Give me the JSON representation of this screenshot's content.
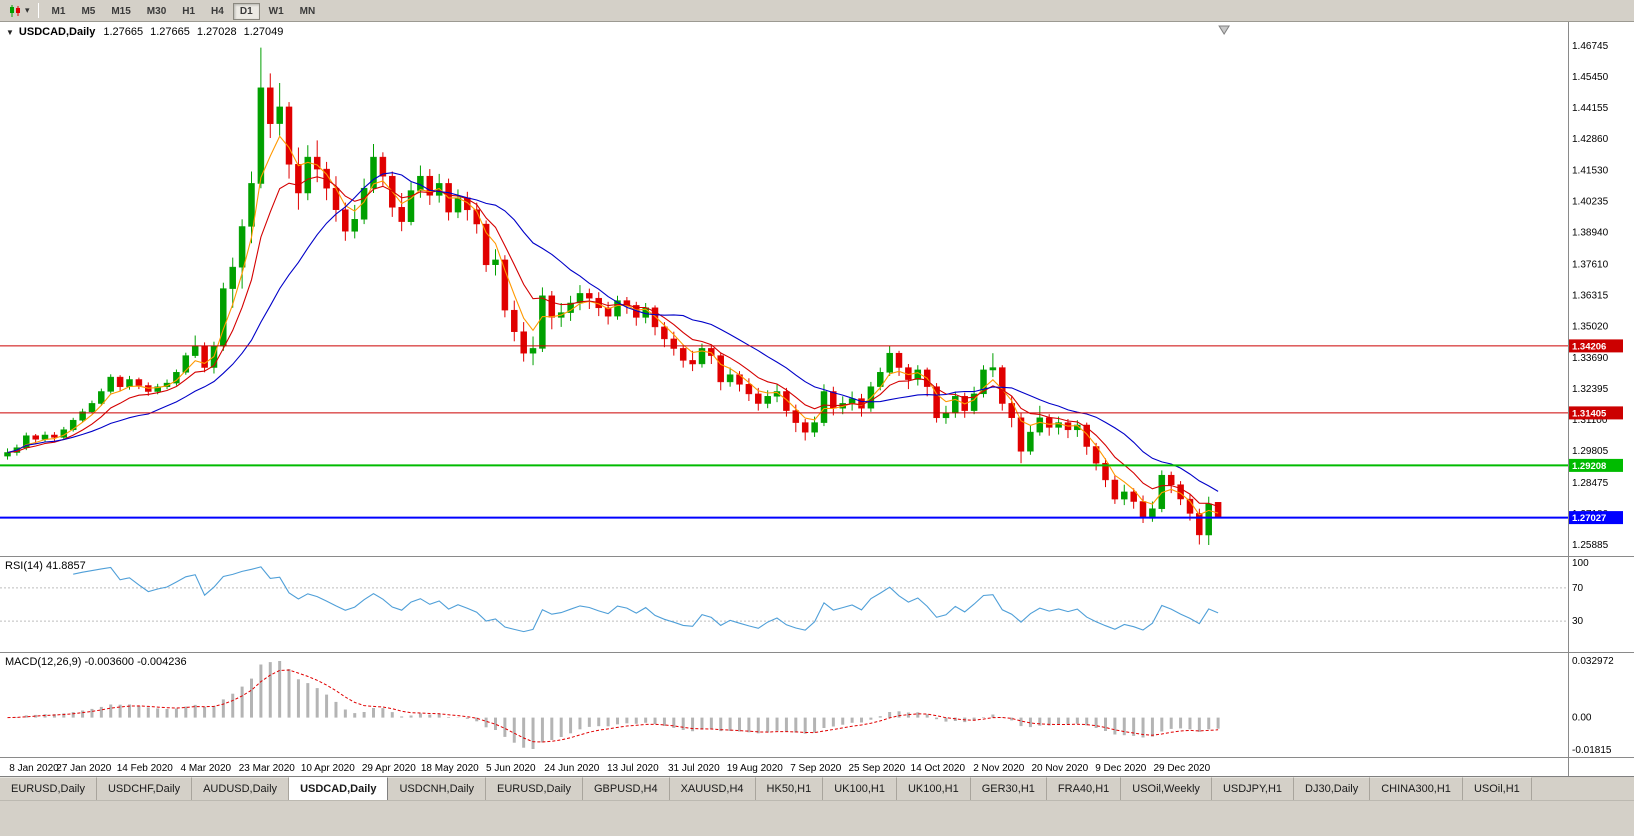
{
  "toolbar": {
    "timeframes": [
      "M1",
      "M5",
      "M15",
      "M30",
      "H1",
      "H4",
      "D1",
      "W1",
      "MN"
    ],
    "active_timeframe": "D1"
  },
  "chart_header": {
    "collapse_icon": "▼",
    "symbol": "USDCAD,Daily",
    "open": "1.27665",
    "high": "1.27665",
    "low": "1.27028",
    "close": "1.27049"
  },
  "indicators": {
    "rsi_label": "RSI(14) 41.8857",
    "macd_label": "MACD(12,26,9) -0.003600 -0.004236"
  },
  "tabs": {
    "items": [
      "EURUSD,Daily",
      "USDCHF,Daily",
      "AUDUSD,Daily",
      "USDCAD,Daily",
      "USDCNH,Daily",
      "EURUSD,Daily",
      "GBPUSD,H4",
      "XAUUSD,H4",
      "HK50,H1",
      "UK100,H1",
      "UK100,H1",
      "GER30,H1",
      "FRA40,H1",
      "USOil,Weekly",
      "USDJPY,H1",
      "DJ30,Daily",
      "CHINA300,H1",
      "USOil,H1"
    ],
    "active_index": 3
  },
  "chart_data": {
    "type": "candlestick",
    "title": "USDCAD,Daily",
    "symbol": "USDCAD",
    "timeframe": "Daily",
    "y_axis_ticks": [
      "1.46745",
      "1.45450",
      "1.44155",
      "1.42860",
      "1.41530",
      "1.40235",
      "1.38940",
      "1.37610",
      "1.36315",
      "1.35020",
      "1.33690",
      "1.32395",
      "1.31100",
      "1.29805",
      "1.28475",
      "1.27180",
      "1.25885"
    ],
    "x_axis_dates": [
      "8 Jan 2020",
      "27 Jan 2020",
      "14 Feb 2020",
      "4 Mar 2020",
      "23 Mar 2020",
      "10 Apr 2020",
      "29 Apr 2020",
      "18 May 2020",
      "5 Jun 2020",
      "24 Jun 2020",
      "13 Jul 2020",
      "31 Jul 2020",
      "19 Aug 2020",
      "7 Sep 2020",
      "25 Sep 2020",
      "14 Oct 2020",
      "2 Nov 2020",
      "20 Nov 2020",
      "9 Dec 2020",
      "29 Dec 2020"
    ],
    "y_range_approx": [
      1.2542,
      1.4775
    ],
    "candle_colors": {
      "up": "#00A000",
      "down": "#E00000"
    },
    "current_bar": {
      "open": 1.27665,
      "high": 1.27665,
      "low": 1.27028,
      "close": 1.27049
    },
    "candles_ohlc": [
      [
        1.296,
        1.2992,
        1.2945,
        1.2975
      ],
      [
        1.2975,
        1.3008,
        1.2962,
        1.2995
      ],
      [
        1.2995,
        1.3058,
        1.2985,
        1.3045
      ],
      [
        1.3045,
        1.3052,
        1.301,
        1.303
      ],
      [
        1.303,
        1.3062,
        1.3018,
        1.3048
      ],
      [
        1.3048,
        1.306,
        1.3022,
        1.3038
      ],
      [
        1.3038,
        1.3082,
        1.303,
        1.307
      ],
      [
        1.307,
        1.312,
        1.3062,
        1.311
      ],
      [
        1.311,
        1.3158,
        1.31,
        1.3145
      ],
      [
        1.3145,
        1.3192,
        1.3138,
        1.318
      ],
      [
        1.318,
        1.3242,
        1.317,
        1.323
      ],
      [
        1.323,
        1.3302,
        1.3222,
        1.329
      ],
      [
        1.329,
        1.3298,
        1.3232,
        1.325
      ],
      [
        1.325,
        1.3295,
        1.3238,
        1.328
      ],
      [
        1.328,
        1.3288,
        1.324,
        1.3255
      ],
      [
        1.3255,
        1.3268,
        1.3212,
        1.323
      ],
      [
        1.323,
        1.3262,
        1.3218,
        1.325
      ],
      [
        1.325,
        1.328,
        1.324,
        1.3265
      ],
      [
        1.3265,
        1.3322,
        1.3255,
        1.331
      ],
      [
        1.331,
        1.3392,
        1.33,
        1.338
      ],
      [
        1.338,
        1.3464,
        1.337,
        1.342
      ],
      [
        1.342,
        1.3435,
        1.331,
        1.333
      ],
      [
        1.333,
        1.3438,
        1.3305,
        1.342
      ],
      [
        1.342,
        1.3685,
        1.34,
        1.366
      ],
      [
        1.366,
        1.379,
        1.358,
        1.375
      ],
      [
        1.375,
        1.395,
        1.366,
        1.392
      ],
      [
        1.392,
        1.415,
        1.385,
        1.41
      ],
      [
        1.41,
        1.4668,
        1.408,
        1.45
      ],
      [
        1.45,
        1.456,
        1.429,
        1.435
      ],
      [
        1.435,
        1.452,
        1.43,
        1.442
      ],
      [
        1.442,
        1.444,
        1.412,
        1.418
      ],
      [
        1.418,
        1.425,
        1.399,
        1.406
      ],
      [
        1.406,
        1.426,
        1.403,
        1.421
      ],
      [
        1.421,
        1.428,
        1.4105,
        1.416
      ],
      [
        1.416,
        1.419,
        1.403,
        1.408
      ],
      [
        1.408,
        1.413,
        1.394,
        1.399
      ],
      [
        1.399,
        1.402,
        1.386,
        1.39
      ],
      [
        1.39,
        1.401,
        1.387,
        1.395
      ],
      [
        1.395,
        1.412,
        1.393,
        1.408
      ],
      [
        1.408,
        1.4265,
        1.406,
        1.421
      ],
      [
        1.421,
        1.423,
        1.409,
        1.413
      ],
      [
        1.413,
        1.415,
        1.396,
        1.4
      ],
      [
        1.4,
        1.406,
        1.39,
        1.394
      ],
      [
        1.394,
        1.4105,
        1.3925,
        1.407
      ],
      [
        1.407,
        1.4175,
        1.404,
        1.413
      ],
      [
        1.413,
        1.416,
        1.401,
        1.405
      ],
      [
        1.405,
        1.414,
        1.402,
        1.41
      ],
      [
        1.41,
        1.412,
        1.3945,
        1.398
      ],
      [
        1.398,
        1.4075,
        1.3955,
        1.404
      ],
      [
        1.404,
        1.4065,
        1.3945,
        1.399
      ],
      [
        1.399,
        1.402,
        1.389,
        1.393
      ],
      [
        1.393,
        1.3945,
        1.373,
        1.376
      ],
      [
        1.376,
        1.3825,
        1.3715,
        1.378
      ],
      [
        1.378,
        1.38,
        1.354,
        1.357
      ],
      [
        1.357,
        1.361,
        1.344,
        1.348
      ],
      [
        1.348,
        1.352,
        1.3355,
        1.339
      ],
      [
        1.339,
        1.346,
        1.334,
        1.341
      ],
      [
        1.341,
        1.3665,
        1.3395,
        1.363
      ],
      [
        1.363,
        1.365,
        1.349,
        1.354
      ],
      [
        1.354,
        1.36,
        1.35,
        1.356
      ],
      [
        1.356,
        1.363,
        1.3525,
        1.36
      ],
      [
        1.36,
        1.3675,
        1.357,
        1.364
      ],
      [
        1.364,
        1.366,
        1.3575,
        1.362
      ],
      [
        1.362,
        1.3645,
        1.3545,
        1.358
      ],
      [
        1.358,
        1.3605,
        1.351,
        1.3545
      ],
      [
        1.3545,
        1.363,
        1.353,
        1.361
      ],
      [
        1.361,
        1.3625,
        1.3555,
        1.359
      ],
      [
        1.359,
        1.3605,
        1.3505,
        1.354
      ],
      [
        1.354,
        1.36,
        1.3515,
        1.358
      ],
      [
        1.358,
        1.359,
        1.3465,
        1.35
      ],
      [
        1.35,
        1.352,
        1.3415,
        1.345
      ],
      [
        1.345,
        1.348,
        1.338,
        1.341
      ],
      [
        1.341,
        1.3425,
        1.333,
        1.336
      ],
      [
        1.336,
        1.34,
        1.3315,
        1.3345
      ],
      [
        1.3345,
        1.343,
        1.333,
        1.341
      ],
      [
        1.341,
        1.342,
        1.3345,
        1.338
      ],
      [
        1.338,
        1.339,
        1.3235,
        1.327
      ],
      [
        1.327,
        1.333,
        1.325,
        1.33
      ],
      [
        1.33,
        1.3315,
        1.323,
        1.326
      ],
      [
        1.326,
        1.3285,
        1.319,
        1.322
      ],
      [
        1.322,
        1.3245,
        1.315,
        1.318
      ],
      [
        1.318,
        1.3235,
        1.316,
        1.321
      ],
      [
        1.321,
        1.326,
        1.3185,
        1.323
      ],
      [
        1.323,
        1.3245,
        1.3125,
        1.315
      ],
      [
        1.315,
        1.3175,
        1.306,
        1.31
      ],
      [
        1.31,
        1.3115,
        1.3025,
        1.306
      ],
      [
        1.306,
        1.3125,
        1.304,
        1.31
      ],
      [
        1.31,
        1.326,
        1.3085,
        1.323
      ],
      [
        1.323,
        1.325,
        1.313,
        1.316
      ],
      [
        1.316,
        1.321,
        1.3135,
        1.318
      ],
      [
        1.318,
        1.323,
        1.315,
        1.32
      ],
      [
        1.32,
        1.322,
        1.3125,
        1.316
      ],
      [
        1.316,
        1.327,
        1.3145,
        1.325
      ],
      [
        1.325,
        1.333,
        1.3235,
        1.331
      ],
      [
        1.331,
        1.342,
        1.3295,
        1.339
      ],
      [
        1.339,
        1.34,
        1.3295,
        1.333
      ],
      [
        1.333,
        1.3345,
        1.324,
        1.328
      ],
      [
        1.328,
        1.334,
        1.3255,
        1.332
      ],
      [
        1.332,
        1.333,
        1.321,
        1.325
      ],
      [
        1.325,
        1.3265,
        1.31,
        1.312
      ],
      [
        1.312,
        1.317,
        1.3095,
        1.314
      ],
      [
        1.314,
        1.323,
        1.312,
        1.321
      ],
      [
        1.321,
        1.3225,
        1.312,
        1.315
      ],
      [
        1.315,
        1.325,
        1.3135,
        1.322
      ],
      [
        1.322,
        1.334,
        1.3205,
        1.332
      ],
      [
        1.332,
        1.339,
        1.329,
        1.333
      ],
      [
        1.333,
        1.334,
        1.315,
        1.318
      ],
      [
        1.318,
        1.321,
        1.308,
        1.312
      ],
      [
        1.312,
        1.314,
        1.293,
        1.298
      ],
      [
        1.298,
        1.309,
        1.2965,
        1.306
      ],
      [
        1.306,
        1.317,
        1.3045,
        1.312
      ],
      [
        1.312,
        1.3135,
        1.3045,
        1.308
      ],
      [
        1.308,
        1.3125,
        1.305,
        1.31
      ],
      [
        1.31,
        1.3115,
        1.3035,
        1.307
      ],
      [
        1.307,
        1.311,
        1.304,
        1.309
      ],
      [
        1.309,
        1.31,
        1.2965,
        1.3
      ],
      [
        1.3,
        1.3015,
        1.29,
        1.293
      ],
      [
        1.293,
        1.295,
        1.283,
        1.286
      ],
      [
        1.286,
        1.288,
        1.276,
        1.278
      ],
      [
        1.278,
        1.284,
        1.2755,
        1.281
      ],
      [
        1.281,
        1.2825,
        1.274,
        1.277
      ],
      [
        1.277,
        1.2795,
        1.268,
        1.27
      ],
      [
        1.27,
        1.277,
        1.2685,
        1.274
      ],
      [
        1.274,
        1.29,
        1.2725,
        1.288
      ],
      [
        1.288,
        1.2895,
        1.2805,
        1.284
      ],
      [
        1.284,
        1.2855,
        1.2755,
        1.278
      ],
      [
        1.278,
        1.28,
        1.269,
        1.272
      ],
      [
        1.272,
        1.274,
        1.259,
        1.263
      ],
      [
        1.263,
        1.279,
        1.2588,
        1.276
      ],
      [
        1.27665,
        1.27665,
        1.27028,
        1.27049
      ]
    ],
    "moving_averages": [
      {
        "name": "fast",
        "method": "ema",
        "period": 4,
        "color": "#FF9900"
      },
      {
        "name": "medium",
        "method": "ema",
        "period": 8,
        "color": "#D40000"
      },
      {
        "name": "slow",
        "method": "sma",
        "period": 16,
        "color": "#0000C8"
      }
    ],
    "horizontal_lines": [
      {
        "price": 1.34206,
        "color": "#CC0000",
        "width": 1
      },
      {
        "price": 1.31405,
        "color": "#CC0000",
        "width": 1
      },
      {
        "price": 1.29208,
        "color": "#00BB00",
        "width": 2
      },
      {
        "price": 1.27027,
        "color": "#0000FF",
        "width": 2
      }
    ],
    "rsi": {
      "period": 14,
      "current_value": 41.8857,
      "color": "#4F9FD8",
      "levels": [
        70,
        30
      ],
      "axis_labels": [
        "100",
        "70",
        "30"
      ]
    },
    "macd": {
      "fast": 12,
      "slow": 26,
      "signal": 9,
      "macd_value": -0.0036,
      "signal_value": -0.004236,
      "histogram_color": "#B4B4B4",
      "signal_color": "#E00000",
      "axis_labels": [
        "0.032972",
        "0.00",
        "-0.01815"
      ]
    }
  }
}
